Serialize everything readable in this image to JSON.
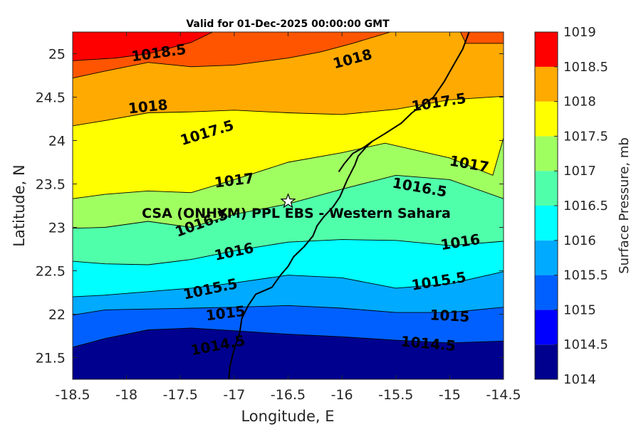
{
  "chart_data": {
    "type": "heatmap",
    "title": "Valid for 01-Dec-2025 00:00:00 GMT",
    "xlabel": "Longitude, E",
    "ylabel": "Latitude, N",
    "xlim": [
      -18.5,
      -14.5
    ],
    "ylim": [
      21.25,
      25.25
    ],
    "xticks": [
      -18.5,
      -18,
      -17.5,
      -17,
      -16.5,
      -16,
      -15.5,
      -15,
      -14.5
    ],
    "xtick_labels": [
      "-18.5",
      "-18",
      "-17.5",
      "-17",
      "-16.5",
      "-16",
      "-15.5",
      "-15",
      "-14.5"
    ],
    "yticks": [
      21.5,
      22,
      22.5,
      23,
      23.5,
      24,
      24.5,
      25
    ],
    "ytick_labels": [
      "21.5",
      "22",
      "22.5",
      "23",
      "23.5",
      "24",
      "24.5",
      "25"
    ],
    "colorbar": {
      "label": "Surface Pressure, mb",
      "range": [
        1014,
        1019
      ],
      "ticks": [
        1014,
        1014.5,
        1015,
        1015.5,
        1016,
        1016.5,
        1017,
        1017.5,
        1018,
        1018.5,
        1019
      ],
      "tick_labels": [
        "1014",
        "1014.5",
        "1015",
        "1015.5",
        "1016",
        "1016.5",
        "1017",
        "1017.5",
        "1018",
        "1018.5",
        "1019"
      ],
      "colors": [
        "#00008f",
        "#0000ff",
        "#0060ff",
        "#00aaff",
        "#00ffff",
        "#50ffaa",
        "#a0ff60",
        "#ffff00",
        "#ffaa00",
        "#ff5500",
        "#ff0000"
      ]
    },
    "contours": [
      {
        "level": 1014.5,
        "label": "1014.5",
        "points": [
          [
            -18.5,
            21.62
          ],
          [
            -18.2,
            21.72
          ],
          [
            -17.8,
            21.82
          ],
          [
            -17.4,
            21.84
          ],
          [
            -17.0,
            21.81
          ],
          [
            -16.5,
            21.77
          ],
          [
            -16.0,
            21.74
          ],
          [
            -15.5,
            21.7
          ],
          [
            -15.0,
            21.67
          ],
          [
            -14.5,
            21.69
          ]
        ]
      },
      {
        "level": 1015,
        "label": "1015",
        "points": [
          [
            -18.5,
            21.99
          ],
          [
            -18.2,
            22.05
          ],
          [
            -17.8,
            22.06
          ],
          [
            -17.4,
            22.07
          ],
          [
            -17.0,
            22.08
          ],
          [
            -16.5,
            22.1
          ],
          [
            -16.0,
            22.07
          ],
          [
            -15.5,
            22.02
          ],
          [
            -15.0,
            22.02
          ],
          [
            -14.5,
            22.08
          ]
        ]
      },
      {
        "level": 1015.5,
        "label": "1015.5",
        "points": [
          [
            -18.5,
            22.2
          ],
          [
            -18.2,
            22.22
          ],
          [
            -17.8,
            22.26
          ],
          [
            -17.4,
            22.3
          ],
          [
            -17.0,
            22.36
          ],
          [
            -16.5,
            22.45
          ],
          [
            -16.0,
            22.42
          ],
          [
            -15.5,
            22.3
          ],
          [
            -15.0,
            22.35
          ],
          [
            -14.5,
            22.49
          ]
        ]
      },
      {
        "level": 1016,
        "label": "1016",
        "points": [
          [
            -18.5,
            22.61
          ],
          [
            -18.2,
            22.58
          ],
          [
            -17.8,
            22.57
          ],
          [
            -17.4,
            22.63
          ],
          [
            -17.0,
            22.73
          ],
          [
            -16.5,
            22.83
          ],
          [
            -16.0,
            22.86
          ],
          [
            -15.5,
            22.85
          ],
          [
            -15.0,
            22.79
          ],
          [
            -14.5,
            22.84
          ]
        ]
      },
      {
        "level": 1016.5,
        "label": "1016.5",
        "points": [
          [
            -18.5,
            22.99
          ],
          [
            -18.2,
            23.0
          ],
          [
            -17.8,
            23.07
          ],
          [
            -17.4,
            23.0
          ],
          [
            -17.0,
            23.15
          ],
          [
            -16.5,
            23.27
          ],
          [
            -16.0,
            23.44
          ],
          [
            -15.5,
            23.6
          ],
          [
            -15.0,
            23.55
          ],
          [
            -14.5,
            23.33
          ]
        ]
      },
      {
        "level": 1017,
        "label": "1017",
        "points": [
          [
            -18.5,
            23.33
          ],
          [
            -18.2,
            23.38
          ],
          [
            -17.8,
            23.42
          ],
          [
            -17.4,
            23.4
          ],
          [
            -17.0,
            23.55
          ],
          [
            -16.5,
            23.75
          ],
          [
            -16.0,
            23.86
          ],
          [
            -15.6,
            23.97
          ],
          [
            -15.0,
            23.8
          ],
          [
            -14.6,
            23.6
          ],
          [
            -14.5,
            24.03
          ]
        ]
      },
      {
        "level": 1017.5,
        "label": "1017.5",
        "points": [
          [
            -18.5,
            24.17
          ],
          [
            -18.2,
            24.23
          ],
          [
            -17.8,
            24.32
          ],
          [
            -17.4,
            24.33
          ],
          [
            -17.0,
            24.35
          ],
          [
            -16.5,
            24.32
          ],
          [
            -16.0,
            24.3
          ],
          [
            -15.5,
            24.36
          ],
          [
            -15.0,
            24.47
          ],
          [
            -14.5,
            24.51
          ]
        ]
      },
      {
        "level": 1018,
        "label": "1018",
        "points": [
          [
            -18.5,
            24.72
          ],
          [
            -18.2,
            24.8
          ],
          [
            -17.8,
            24.9
          ],
          [
            -17.4,
            24.85
          ],
          [
            -17.0,
            24.87
          ],
          [
            -16.5,
            24.95
          ],
          [
            -16.2,
            25.02
          ],
          [
            -15.9,
            25.12
          ],
          [
            -15.55,
            25.25
          ]
        ]
      },
      {
        "level": 1018.5,
        "label": "1018.5",
        "points": [
          [
            -18.5,
            24.92
          ],
          [
            -18.1,
            24.95
          ],
          [
            -17.8,
            25.0
          ],
          [
            -17.4,
            25.13
          ],
          [
            -17.2,
            25.25
          ]
        ]
      },
      {
        "level": 1018,
        "label": "",
        "points": [
          [
            -14.9,
            25.25
          ],
          [
            -14.85,
            25.12
          ],
          [
            -14.5,
            25.12
          ]
        ]
      }
    ],
    "coastline": [
      [
        -17.05,
        21.25
      ],
      [
        -17.04,
        21.4
      ],
      [
        -17.0,
        21.6
      ],
      [
        -16.95,
        21.78
      ],
      [
        -16.93,
        21.95
      ],
      [
        -16.87,
        22.1
      ],
      [
        -16.8,
        22.23
      ],
      [
        -16.65,
        22.31
      ],
      [
        -16.57,
        22.45
      ],
      [
        -16.5,
        22.55
      ],
      [
        -16.45,
        22.66
      ],
      [
        -16.35,
        22.78
      ],
      [
        -16.27,
        22.9
      ],
      [
        -16.23,
        23.02
      ],
      [
        -16.17,
        23.12
      ],
      [
        -16.08,
        23.24
      ],
      [
        -16.02,
        23.35
      ],
      [
        -15.95,
        23.55
      ],
      [
        -15.88,
        23.72
      ],
      [
        -15.85,
        23.82
      ],
      [
        -15.78,
        23.92
      ],
      [
        -15.72,
        23.99
      ],
      [
        -15.6,
        24.08
      ],
      [
        -15.45,
        24.2
      ],
      [
        -15.35,
        24.32
      ],
      [
        -15.15,
        24.5
      ],
      [
        -15.05,
        24.68
      ],
      [
        -14.95,
        24.9
      ],
      [
        -14.88,
        25.05
      ],
      [
        -14.85,
        25.15
      ],
      [
        -14.82,
        25.25
      ]
    ],
    "dakhla_peninsula": [
      [
        -15.72,
        23.99
      ],
      [
        -15.8,
        23.92
      ],
      [
        -15.9,
        23.85
      ],
      [
        -15.98,
        23.73
      ],
      [
        -16.03,
        23.64
      ]
    ],
    "station": {
      "name": "CSA (ONHYM) PPL EBS - Western Sahara",
      "lon": -16.5,
      "lat": 23.3
    },
    "label_positions": [
      {
        "text": "1018.5",
        "lon": -17.7,
        "lat": 25.0,
        "angle": -8
      },
      {
        "text": "1018",
        "lon": -15.9,
        "lat": 24.93,
        "angle": -15
      },
      {
        "text": "1018",
        "lon": -17.8,
        "lat": 24.38,
        "angle": -6
      },
      {
        "text": "1017.5",
        "lon": -17.25,
        "lat": 24.08,
        "angle": -17
      },
      {
        "text": "1017.5",
        "lon": -15.1,
        "lat": 24.43,
        "angle": -9
      },
      {
        "text": "1017",
        "lon": -17.0,
        "lat": 23.53,
        "angle": -7
      },
      {
        "text": "1017",
        "lon": -14.82,
        "lat": 23.72,
        "angle": 10
      },
      {
        "text": "1016.5",
        "lon": -15.28,
        "lat": 23.45,
        "angle": 10
      },
      {
        "text": "1016.5",
        "lon": -17.3,
        "lat": 23.04,
        "angle": -20
      },
      {
        "text": "1016",
        "lon": -17.0,
        "lat": 22.71,
        "angle": -12
      },
      {
        "text": "1016",
        "lon": -14.9,
        "lat": 22.82,
        "angle": -9
      },
      {
        "text": "1015.5",
        "lon": -17.22,
        "lat": 22.28,
        "angle": -12
      },
      {
        "text": "1015.5",
        "lon": -15.1,
        "lat": 22.37,
        "angle": -9
      },
      {
        "text": "1015",
        "lon": -17.08,
        "lat": 22.0,
        "angle": -7
      },
      {
        "text": "1015",
        "lon": -15.0,
        "lat": 21.97,
        "angle": 3
      },
      {
        "text": "1014.5",
        "lon": -17.15,
        "lat": 21.63,
        "angle": -11
      },
      {
        "text": "1014.5",
        "lon": -15.2,
        "lat": 21.65,
        "angle": 5
      }
    ]
  }
}
